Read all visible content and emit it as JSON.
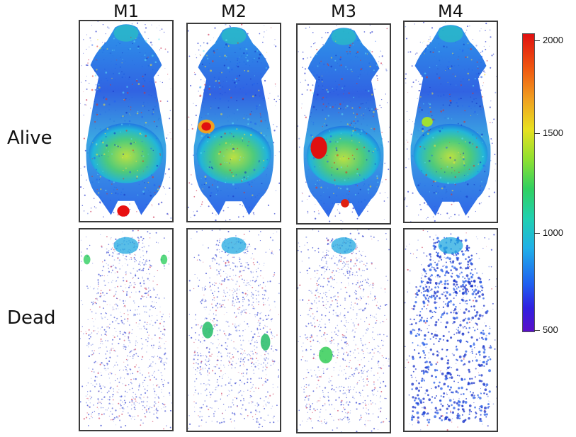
{
  "columns": [
    "M1",
    "M2",
    "M3",
    "M4"
  ],
  "rows": [
    "Alive",
    "Dead"
  ],
  "colorbar": {
    "labels": [
      "2000",
      "1500",
      "1000",
      "500"
    ],
    "values": [
      2000,
      1500,
      1000,
      500
    ],
    "colors": [
      "#e01010",
      "#f0a020",
      "#e8e020",
      "#30d060",
      "#20d0b0",
      "#20b0e8",
      "#2060f0",
      "#5a10c8"
    ]
  }
}
